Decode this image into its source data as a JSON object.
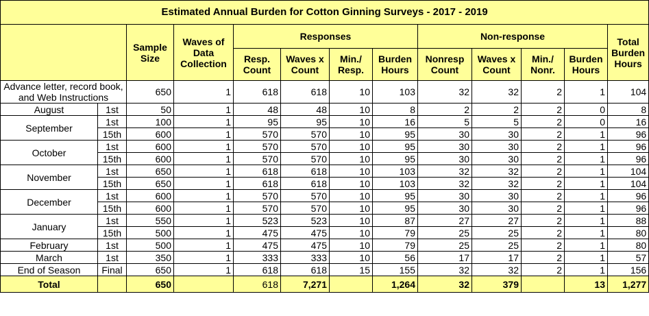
{
  "table": {
    "title": "Estimated Annual Burden for Cotton Ginning Surveys - 2017 - 2019",
    "headers": {
      "sample_size": "Sample Size",
      "waves": "Waves of Data Collection",
      "responses": "Responses",
      "nonresponse": "Non-response",
      "total": "Total Burden Hours",
      "sub": [
        "Resp. Count",
        "Waves x Count",
        "Min./ Resp.",
        "Burden Hours",
        "Nonresp Count",
        "Waves x Count",
        "Min./ Nonr.",
        "Burden Hours"
      ]
    },
    "groups": [
      {
        "label": "Advance letter, record book, and Web Instructions",
        "rows": [
          {
            "cells": [
              650,
              1,
              618,
              618,
              10,
              103,
              32,
              32,
              2,
              1,
              104
            ]
          }
        ]
      },
      {
        "label": "August",
        "rows": [
          {
            "period": "1st",
            "cells": [
              50,
              1,
              48,
              48,
              10,
              8,
              2,
              2,
              2,
              0,
              8
            ]
          }
        ]
      },
      {
        "label": "September",
        "rows": [
          {
            "period": "1st",
            "cells": [
              100,
              1,
              95,
              95,
              10,
              16,
              5,
              5,
              2,
              0,
              16
            ]
          },
          {
            "period": "15th",
            "cells": [
              600,
              1,
              570,
              570,
              10,
              95,
              30,
              30,
              2,
              1,
              96
            ]
          }
        ]
      },
      {
        "label": "October",
        "rows": [
          {
            "period": "1st",
            "cells": [
              600,
              1,
              570,
              570,
              10,
              95,
              30,
              30,
              2,
              1,
              96
            ]
          },
          {
            "period": "15th",
            "cells": [
              600,
              1,
              570,
              570,
              10,
              95,
              30,
              30,
              2,
              1,
              96
            ]
          }
        ]
      },
      {
        "label": "November",
        "rows": [
          {
            "period": "1st",
            "cells": [
              650,
              1,
              618,
              618,
              10,
              103,
              32,
              32,
              2,
              1,
              104
            ]
          },
          {
            "period": "15th",
            "cells": [
              650,
              1,
              618,
              618,
              10,
              103,
              32,
              32,
              2,
              1,
              104
            ]
          }
        ]
      },
      {
        "label": "December",
        "rows": [
          {
            "period": "1st",
            "cells": [
              600,
              1,
              570,
              570,
              10,
              95,
              30,
              30,
              2,
              1,
              96
            ]
          },
          {
            "period": "15th",
            "cells": [
              600,
              1,
              570,
              570,
              10,
              95,
              30,
              30,
              2,
              1,
              96
            ]
          }
        ]
      },
      {
        "label": "January",
        "rows": [
          {
            "period": "1st",
            "cells": [
              550,
              1,
              523,
              523,
              10,
              87,
              27,
              27,
              2,
              1,
              88
            ]
          },
          {
            "period": "15th",
            "cells": [
              500,
              1,
              475,
              475,
              10,
              79,
              25,
              25,
              2,
              1,
              80
            ]
          }
        ]
      },
      {
        "label": "February",
        "rows": [
          {
            "period": "1st",
            "cells": [
              500,
              1,
              475,
              475,
              10,
              79,
              25,
              25,
              2,
              1,
              80
            ]
          }
        ]
      },
      {
        "label": "March",
        "rows": [
          {
            "period": "1st",
            "cells": [
              350,
              1,
              333,
              333,
              10,
              56,
              17,
              17,
              2,
              1,
              57
            ]
          }
        ]
      },
      {
        "label": "End of Season",
        "rows": [
          {
            "period": "Final",
            "cells": [
              650,
              1,
              618,
              618,
              15,
              155,
              32,
              32,
              2,
              1,
              156
            ]
          }
        ]
      }
    ],
    "total_row": {
      "label": "Total",
      "cells": [
        650,
        null,
        618,
        "7,271",
        null,
        "1,264",
        32,
        379,
        null,
        13,
        "1,277"
      ]
    }
  }
}
